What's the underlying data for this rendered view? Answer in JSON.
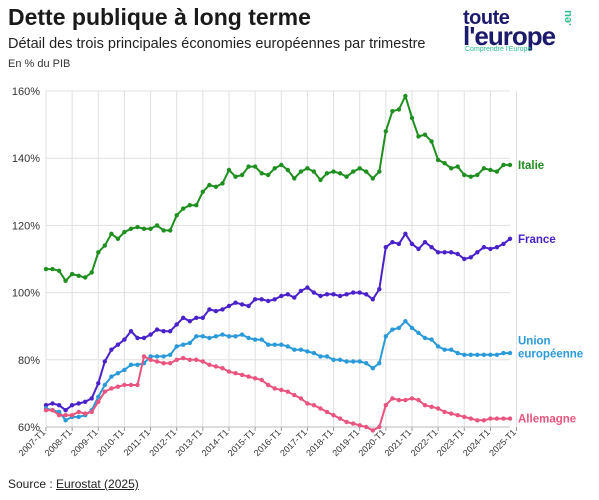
{
  "header": {
    "title": "Dette publique à long terme",
    "subtitle": "Détail des trois principales économies européennes par trimestre",
    "unit": "En % du PIB"
  },
  "logo": {
    "line1": "toute",
    "line2": "l'europe",
    "suffix": ".eu",
    "tagline": "Comprendre l'Europe"
  },
  "source": {
    "prefix": "Source : ",
    "link": "Eurostat (2025)"
  },
  "colors": {
    "italie": "#1f8f1f",
    "france": "#4a22c9",
    "ue": "#2a9ad8",
    "allemagne": "#e8557e",
    "grid": "#e0e0e0"
  },
  "chart_data": {
    "type": "line",
    "x_start": "2007-T1",
    "x_tick_labels": [
      "2007-T1",
      "2008-T1",
      "2009-T1",
      "2010-T1",
      "2011-T1",
      "2012-T1",
      "2013-T1",
      "2014-T1",
      "2015-T1",
      "2016-T1",
      "2017-T1",
      "2018-T1",
      "2019-T1",
      "2020-T1",
      "2021-T1",
      "2022-T1",
      "2023-T1",
      "2024-T1",
      "2025-T1"
    ],
    "y_tick_labels": [
      "60%",
      "80%",
      "100%",
      "120%",
      "140%",
      "160%"
    ],
    "ylim": [
      60,
      160
    ],
    "grid": true,
    "series": [
      {
        "name": "Italie",
        "color": "#1f8f1f",
        "values": [
          107,
          107,
          106.5,
          103.5,
          105.5,
          105,
          104.5,
          106,
          112,
          114,
          117.5,
          116,
          118,
          119,
          119.5,
          119,
          119,
          120,
          118.5,
          118.5,
          123,
          125,
          126,
          126,
          130,
          132,
          131.5,
          132.5,
          136.5,
          134.5,
          135,
          137.5,
          137.5,
          135.5,
          135,
          137,
          138,
          136.5,
          134,
          136,
          137,
          136,
          133.5,
          135.5,
          136,
          135.5,
          134.5,
          136,
          137,
          136,
          134,
          136,
          148,
          154,
          154.5,
          158.5,
          152,
          146.5,
          147,
          145,
          139.5,
          138.5,
          137,
          137.5,
          135,
          134.5,
          135,
          137,
          136.5,
          136,
          138,
          138
        ]
      },
      {
        "name": "France",
        "color": "#4a22c9",
        "values": [
          66.5,
          67,
          66.5,
          65,
          66.5,
          67,
          67.5,
          68.5,
          73,
          79.5,
          83,
          84.5,
          86,
          88.5,
          86.5,
          86.5,
          87.5,
          89,
          88.5,
          88.5,
          90.5,
          92.5,
          91.5,
          92.5,
          92.5,
          95,
          94.5,
          95,
          96,
          97,
          96.5,
          96,
          98,
          98,
          97.5,
          98,
          99,
          99.5,
          98.5,
          100.5,
          101.5,
          100,
          99,
          99.5,
          99.5,
          99,
          99.5,
          100,
          100,
          99.5,
          98,
          101,
          113.5,
          115,
          114.5,
          117.5,
          114.5,
          113,
          115,
          113.5,
          112,
          112,
          112,
          111.5,
          110,
          110.5,
          112,
          113.5,
          113,
          113.5,
          114.5,
          116
        ]
      },
      {
        "name": "Union européenne",
        "color": "#2a9ad8",
        "values": [
          65.5,
          65,
          64.5,
          62,
          63,
          63,
          63.5,
          65,
          69,
          72.5,
          75,
          76,
          77,
          78.5,
          78.5,
          79,
          81,
          81,
          81,
          81.5,
          84,
          84.5,
          85,
          87,
          87,
          86.5,
          87,
          87.5,
          87,
          87,
          87.5,
          86.5,
          86,
          86,
          84.5,
          84.5,
          84.5,
          84,
          83,
          83,
          82.5,
          82,
          81,
          81,
          80,
          80,
          79.5,
          79.5,
          79.5,
          79,
          77.5,
          79,
          87,
          89,
          89.5,
          91.5,
          89.5,
          88,
          86.5,
          86,
          84,
          83,
          83,
          82,
          81.5,
          81.5,
          81.5,
          81.5,
          81.5,
          81.5,
          82,
          82
        ]
      },
      {
        "name": "Allemagne",
        "color": "#e8557e",
        "values": [
          65,
          65,
          63.5,
          63.5,
          63.5,
          64.5,
          64,
          64.5,
          67.5,
          70.5,
          71.5,
          72,
          72.5,
          72.5,
          72.5,
          81,
          80,
          79.5,
          79,
          79,
          80,
          80.5,
          80,
          80,
          79.5,
          78.5,
          78,
          77.5,
          76.5,
          76,
          75.5,
          75,
          74.5,
          74,
          72.5,
          71.5,
          71,
          70.5,
          69.5,
          68.5,
          67,
          66.5,
          65.5,
          64.5,
          63.5,
          62.5,
          61.5,
          61,
          60.5,
          60,
          59,
          60,
          66.5,
          68.5,
          68,
          68,
          68.5,
          68,
          66.5,
          66,
          65.5,
          64.5,
          64,
          63.5,
          63,
          62.5,
          62,
          62,
          62.5,
          62.5,
          62.5,
          62.5
        ]
      }
    ],
    "series_labels": [
      {
        "lines": [
          "Italie"
        ]
      },
      {
        "lines": [
          "France"
        ]
      },
      {
        "lines": [
          "Union",
          "européenne"
        ]
      },
      {
        "lines": [
          "Allemagne"
        ]
      }
    ]
  }
}
